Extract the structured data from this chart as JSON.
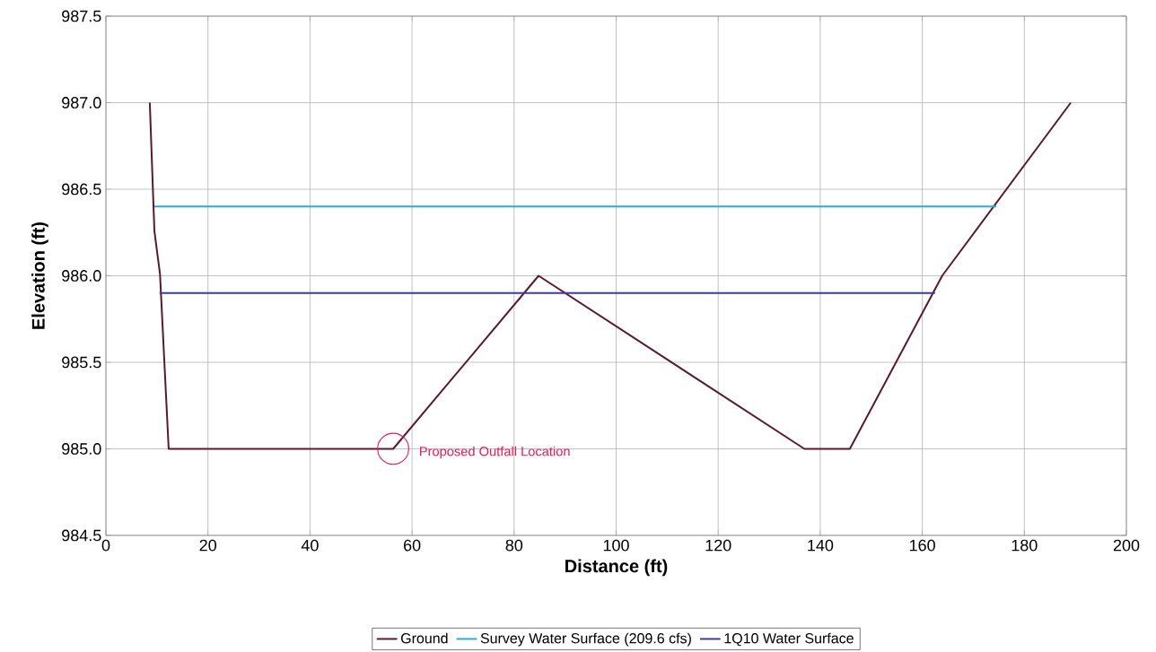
{
  "chart_data": {
    "type": "line",
    "xlabel": "Distance (ft)",
    "ylabel": "Elevation (ft)",
    "xlim": [
      0,
      200
    ],
    "xticks": [
      0,
      20,
      40,
      60,
      80,
      100,
      120,
      140,
      160,
      180,
      200
    ],
    "ylim": [
      984.5,
      987.5
    ],
    "yticks": [
      {
        "value": 984.5,
        "label": "984.5"
      },
      {
        "value": 985,
        "label": "985.0"
      },
      {
        "value": 985.5,
        "label": "985.5"
      },
      {
        "value": 986,
        "label": "986.0"
      },
      {
        "value": 986.5,
        "label": "986.5"
      },
      {
        "value": 987,
        "label": "987.0"
      },
      {
        "value": 987.5,
        "label": "987.5"
      }
    ],
    "grid": true,
    "legend": "bottom",
    "marker": "none",
    "line_style": "solid",
    "series": [
      {
        "name": "Ground",
        "color": "#5a1a2e",
        "x": [
          8.6,
          9.5,
          10.6,
          12.3,
          56.3,
          84.8,
          136.9,
          145.8,
          163.9,
          189.1
        ],
        "values": [
          987.0,
          986.26,
          986.01,
          985.0,
          985.0,
          986.0,
          985.0,
          985.0,
          986.0,
          987.0
        ]
      },
      {
        "name": "Survey Water Surface (209.6 cfs)",
        "color": "#29abe2",
        "x": [
          9.5,
          174.5
        ],
        "values": [
          986.4,
          986.4
        ]
      },
      {
        "name": "1Q10 Water Surface",
        "color": "#3a3aa8",
        "x": [
          10.5,
          162.5
        ],
        "values": [
          985.9,
          985.9
        ]
      }
    ],
    "annotations": [
      {
        "text": "Proposed Outfall Location",
        "x": 56.3,
        "y": 985.0
      }
    ]
  }
}
